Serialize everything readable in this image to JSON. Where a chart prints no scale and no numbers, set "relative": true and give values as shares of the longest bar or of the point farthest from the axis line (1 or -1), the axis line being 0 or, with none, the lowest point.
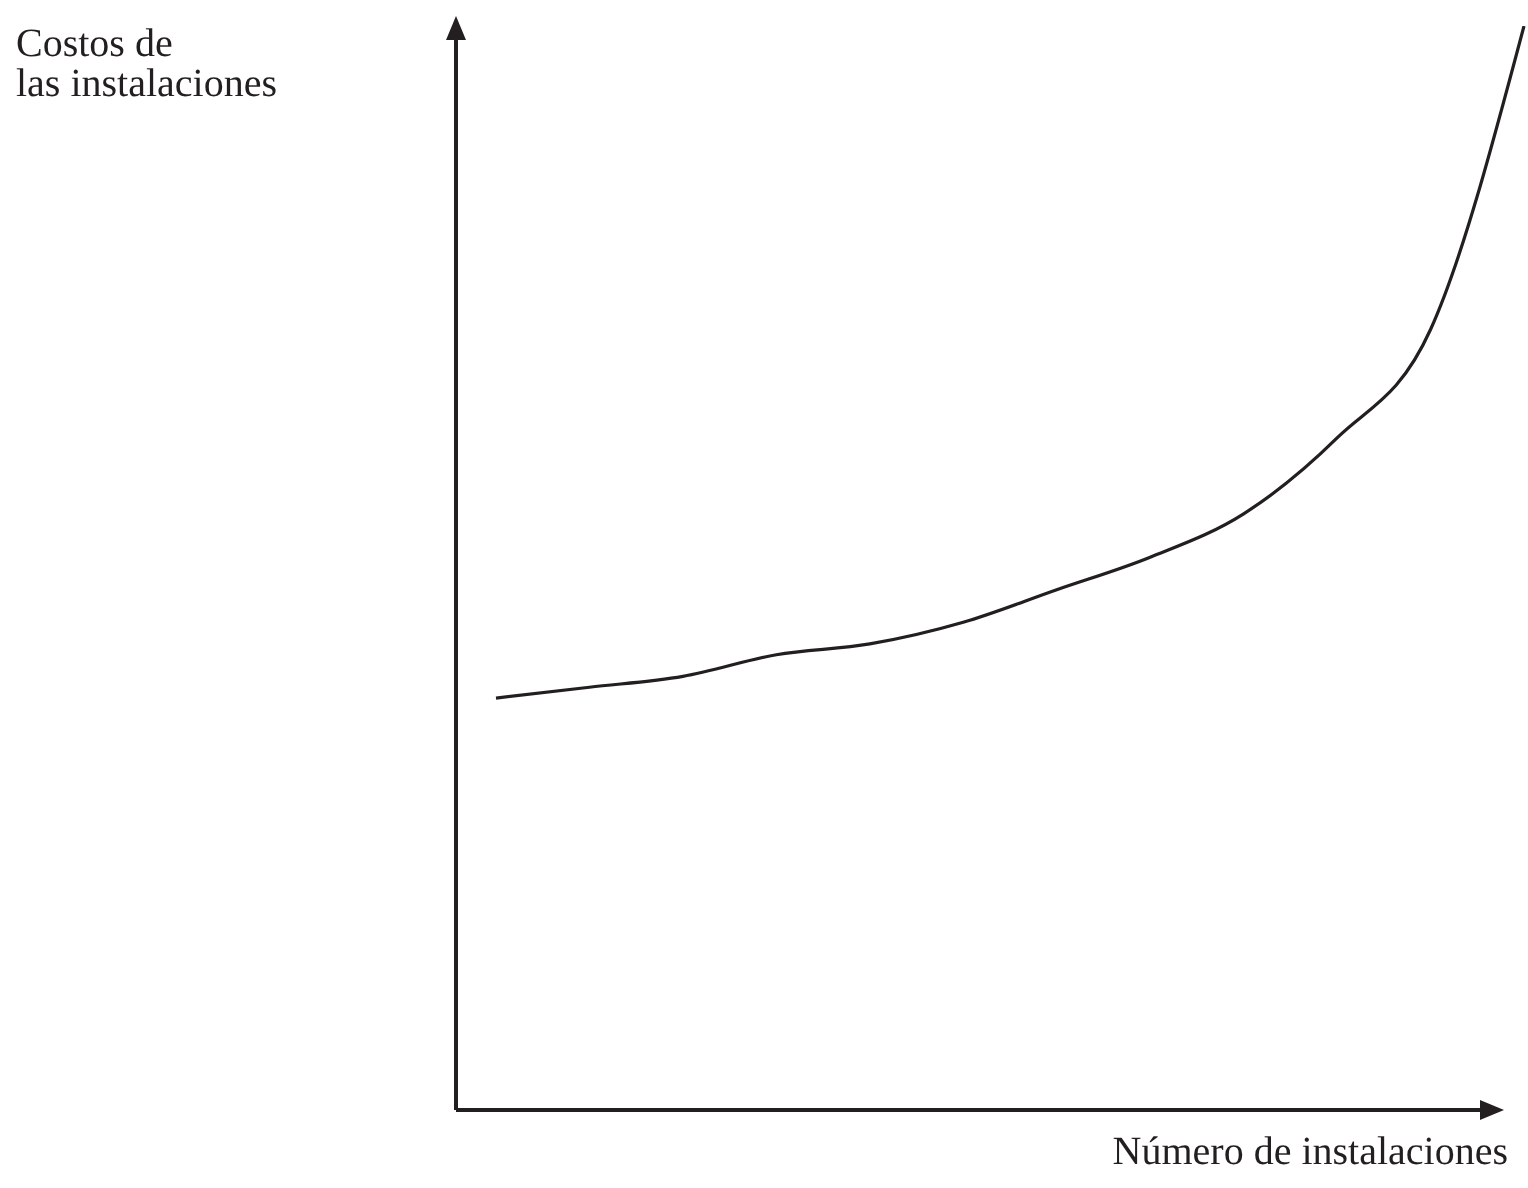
{
  "chart_data": {
    "type": "line",
    "relative": true,
    "xlabel": "Número de instalaciones",
    "ylabel": "Costos de\nlas instalaciones",
    "categories": [
      null,
      null,
      null,
      null,
      null,
      null,
      null,
      null,
      null,
      null,
      null,
      null
    ],
    "series": [
      {
        "color": "#231f20",
        "values": [
          0.38,
          0.39,
          0.4,
          0.42,
          0.43,
          0.45,
          0.48,
          0.51,
          0.55,
          0.62,
          0.72,
          1
        ]
      }
    ]
  }
}
